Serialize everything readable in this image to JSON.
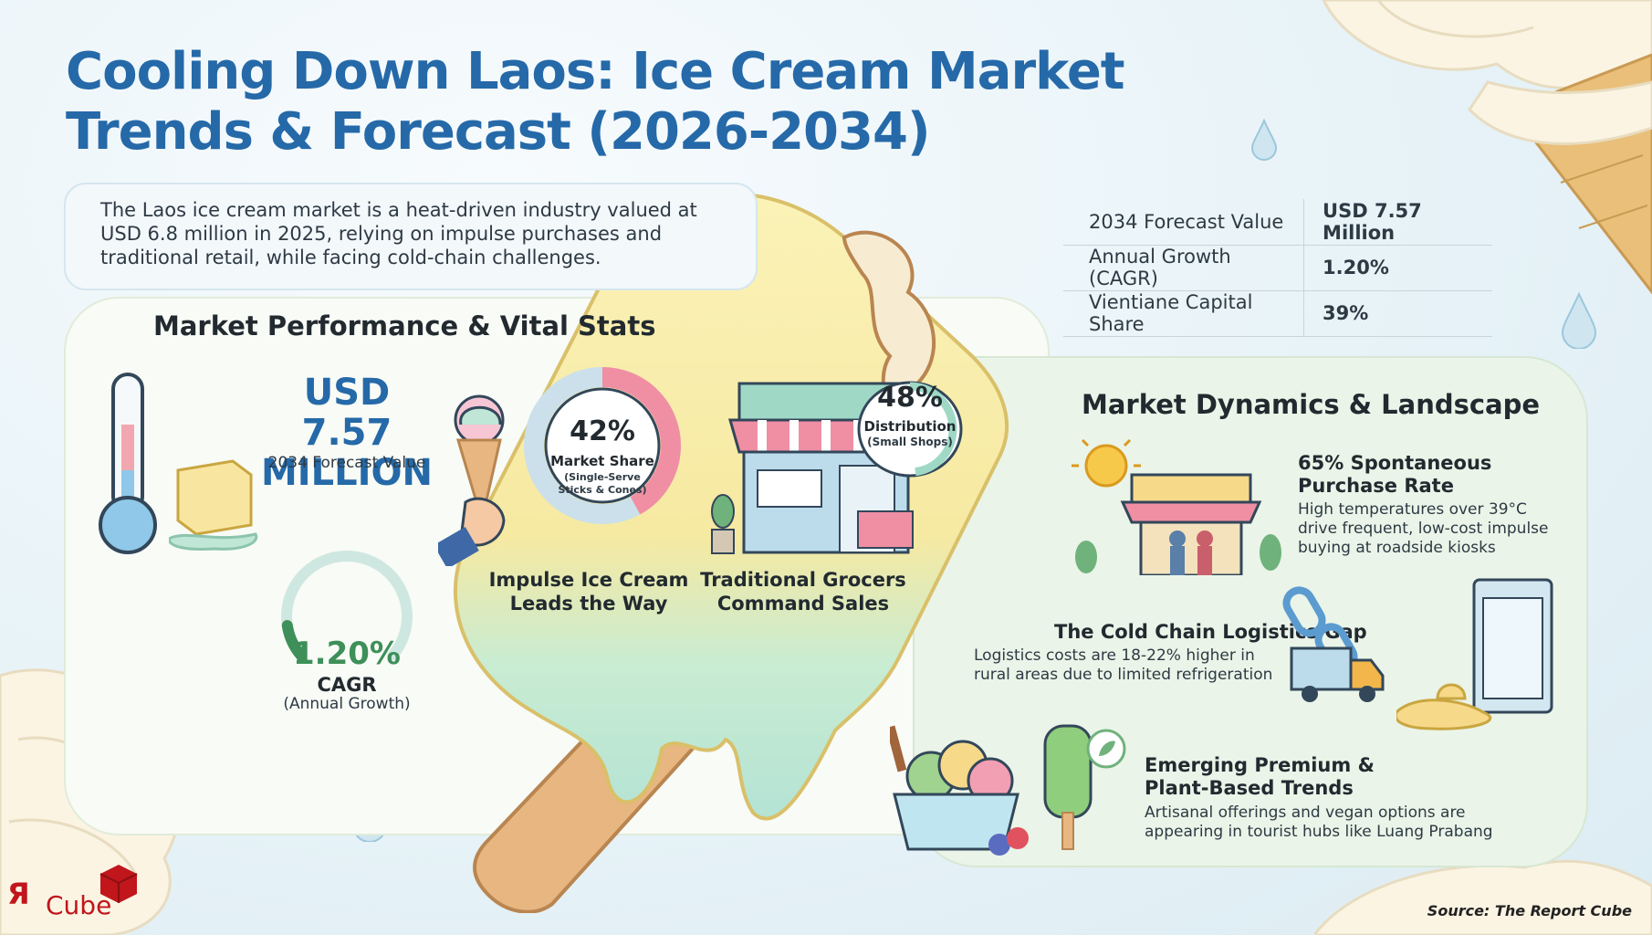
{
  "title": "Cooling Down Laos: Ice Cream Market Trends & Forecast (2026-2034)",
  "intro": "The Laos ice cream market is a heat-driven industry valued at USD 6.8 million in 2025, relying on impulse purchases and traditional retail, while facing cold-chain challenges.",
  "stats_table": [
    {
      "label": "2034 Forecast Value",
      "value": "USD 7.57 Million"
    },
    {
      "label": "Annual Growth (CAGR)",
      "value": "1.20%"
    },
    {
      "label": "Vientiane Capital Share",
      "value": "39%"
    }
  ],
  "performance": {
    "heading": "Market Performance & Vital Stats",
    "forecast_value_line1": "USD 7.57",
    "forecast_value_line2": "MILLION",
    "forecast_label": "2034 Forecast Value",
    "cagr_value": "1.20%",
    "cagr_label": "CAGR",
    "cagr_sublabel": "(Annual Growth)",
    "cagr_gauge_fraction": 0.12,
    "impulse_share": "42%",
    "impulse_share_label": "Market Share",
    "impulse_share_sub": "(Single-Serve Sticks & Cones)",
    "impulse_fraction": 0.42,
    "impulse_caption_1": "Impulse Ice Cream",
    "impulse_caption_2": "Leads the Way",
    "distribution_share": "48%",
    "distribution_label": "Distribution",
    "distribution_sub": "(Small Shops)",
    "distribution_fraction": 0.48,
    "grocers_caption_1": "Traditional Grocers",
    "grocers_caption_2": "Command Sales"
  },
  "dynamics": {
    "heading": "Market Dynamics & Landscape",
    "items": [
      {
        "title_1": "65% Spontaneous",
        "title_2": "Purchase Rate",
        "desc_1": "High temperatures over 39°C",
        "desc_2": "drive frequent, low-cost impulse",
        "desc_3": "buying at roadside kiosks"
      },
      {
        "title_1": "The Cold Chain Logistics Gap",
        "desc_1": "Logistics costs are 18-22% higher in",
        "desc_2": "rural areas due to limited refrigeration"
      },
      {
        "title_1": "Emerging Premium &",
        "title_2": "Plant-Based Trends",
        "desc_1": "Artisanal offerings and vegan options are",
        "desc_2": "appearing in tourist hubs like Luang Prabang"
      }
    ]
  },
  "logo_text": "Cube",
  "source": "Source: The Report Cube",
  "colors": {
    "title_blue": "#2569a8",
    "cagr_green": "#3e8f59",
    "donut_pink": "#f08fa3",
    "donut_mint": "#9fd9c6",
    "logo_red": "#c0161c"
  }
}
